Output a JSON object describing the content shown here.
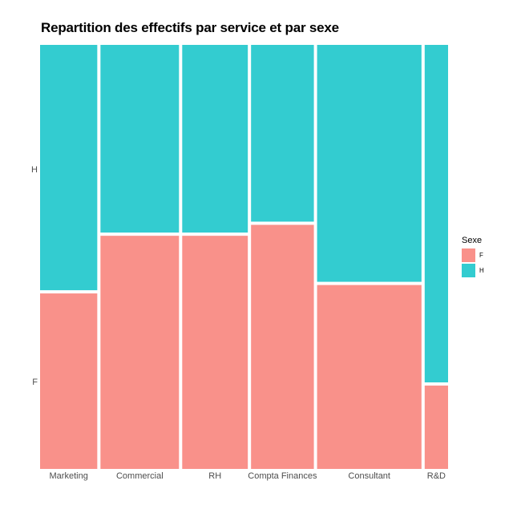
{
  "chart_data": {
    "type": "mosaic",
    "title": "Repartition des effectifs par service et par sexe",
    "xlabel": "",
    "ylabel": "",
    "categories": [
      "Marketing",
      "Commercial",
      "RH",
      "Compta Finances",
      "Consultant",
      "R&D"
    ],
    "column_shares": [
      0.1335,
      0.1833,
      0.1532,
      0.1467,
      0.2437,
      0.0546
    ],
    "series": [
      {
        "name": "F",
        "color": "#F8766D",
        "values": [
          0.417,
          0.554,
          0.554,
          0.58,
          0.437,
          0.198
        ]
      },
      {
        "name": "H",
        "color": "#00BFC4",
        "values": [
          0.583,
          0.446,
          0.446,
          0.42,
          0.563,
          0.802
        ]
      }
    ],
    "y_tick_labels": [
      "F",
      "H"
    ],
    "ylim": [
      0,
      1
    ],
    "grid": false,
    "legend_position": "right",
    "legend_title": "Sexe"
  }
}
